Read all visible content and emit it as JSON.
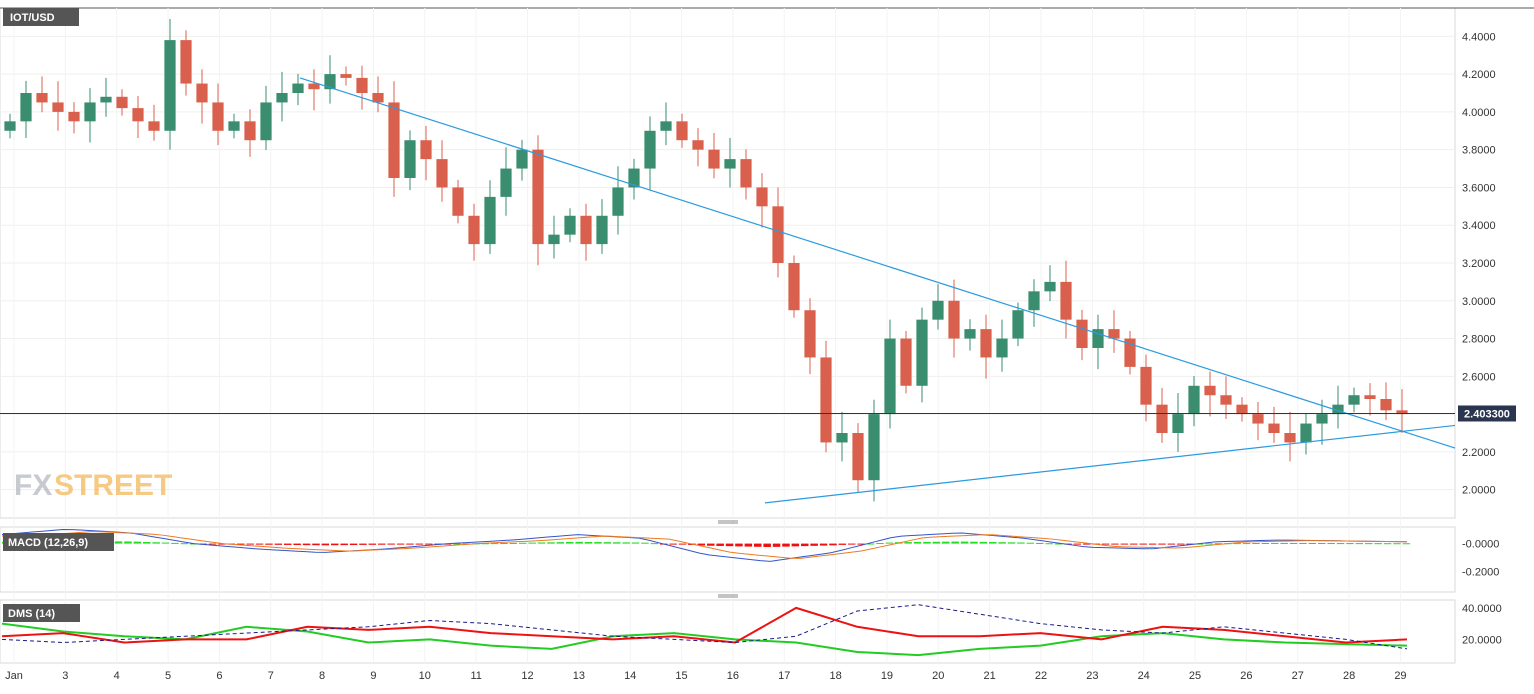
{
  "symbol": "IOT/USD",
  "watermark": {
    "fx": "FX",
    "street": "STREET"
  },
  "current_price_label": "2.403300",
  "macd_label": "MACD (12,26,9)",
  "dms_label": "DMS (14)",
  "x_tick_labels": [
    "Jan",
    "3",
    "4",
    "5",
    "6",
    "7",
    "8",
    "9",
    "10",
    "11",
    "12",
    "13",
    "14",
    "15",
    "16",
    "17",
    "18",
    "19",
    "20",
    "21",
    "22",
    "23",
    "24",
    "25",
    "26",
    "27",
    "28",
    "29"
  ],
  "colors": {
    "up": "#3a8d6f",
    "down": "#d9604c",
    "trend": "#2b9be0",
    "macd_up": "#22dd22",
    "macd_down": "#ee1111",
    "macd_line": "#3355cc",
    "signal_line": "#f07a20",
    "dms_plus": "#22cc22",
    "dms_minus": "#ee1111",
    "adx": "#1a1a8c"
  },
  "chart_data": [
    {
      "type": "candlestick",
      "title": "IOT/USD",
      "x_labels": [
        "Jan",
        "3",
        "4",
        "5",
        "6",
        "7",
        "8",
        "9",
        "10",
        "11",
        "12",
        "13",
        "14",
        "15",
        "16",
        "17",
        "18",
        "19",
        "20",
        "21",
        "22",
        "23",
        "24",
        "25",
        "26",
        "27",
        "28",
        "29"
      ],
      "ylim": [
        1.85,
        4.55
      ],
      "y_ticks": [
        "2.0000",
        "2.2000",
        "2.4000",
        "2.6000",
        "2.8000",
        "3.0000",
        "3.2000",
        "3.4000",
        "3.6000",
        "3.8000",
        "4.0000",
        "4.2000",
        "4.4000"
      ],
      "last_price": 2.4033,
      "closes": [
        3.95,
        4.1,
        4.05,
        4.0,
        3.95,
        4.05,
        4.08,
        4.02,
        3.95,
        3.9,
        4.38,
        4.15,
        4.05,
        3.9,
        3.95,
        3.85,
        4.05,
        4.1,
        4.15,
        4.12,
        4.2,
        4.18,
        4.1,
        4.05,
        3.65,
        3.85,
        3.75,
        3.6,
        3.45,
        3.3,
        3.55,
        3.7,
        3.8,
        3.3,
        3.35,
        3.45,
        3.3,
        3.45,
        3.6,
        3.7,
        3.9,
        3.95,
        3.85,
        3.8,
        3.7,
        3.75,
        3.6,
        3.5,
        3.2,
        2.95,
        2.7,
        2.25,
        2.3,
        2.05,
        2.4,
        2.8,
        2.55,
        2.9,
        3.0,
        2.8,
        2.85,
        2.7,
        2.8,
        2.95,
        3.05,
        3.1,
        2.9,
        2.75,
        2.85,
        2.8,
        2.65,
        2.45,
        2.3,
        2.4,
        2.55,
        2.5,
        2.45,
        2.4,
        2.35,
        2.3,
        2.25,
        2.35,
        2.4,
        2.45,
        2.5,
        2.48,
        2.42,
        2.4
      ],
      "annotations": [
        "descending trendline",
        "ascending trendline"
      ]
    },
    {
      "type": "bar",
      "title": "MACD (12,26,9)",
      "ylim": [
        -0.35,
        0.12
      ],
      "y_ticks": [
        "-0.0000",
        "-0.2000"
      ],
      "values_sample": [
        0.05,
        0.08,
        0.06,
        0.0,
        -0.03,
        -0.05,
        -0.03,
        0.0,
        0.02,
        0.05,
        0.03,
        -0.06,
        -0.1,
        -0.05,
        0.04,
        0.06,
        0.03,
        -0.02,
        -0.03,
        0.01,
        0.02,
        0.015,
        0.01
      ]
    },
    {
      "type": "line",
      "title": "DMS (14)",
      "ylim": [
        5,
        45
      ],
      "y_ticks": [
        "40.0000",
        "20.0000"
      ],
      "series": [
        {
          "name": "",
          "values": [
            30,
            25,
            22,
            20,
            28,
            25,
            18,
            20,
            16,
            14,
            22,
            24,
            20,
            18,
            12,
            10,
            14,
            16,
            22,
            24,
            20,
            18,
            17,
            16
          ]
        },
        {
          "name": "",
          "values": [
            22,
            24,
            18,
            20,
            20,
            28,
            26,
            28,
            24,
            22,
            20,
            22,
            18,
            40,
            28,
            22,
            22,
            24,
            20,
            28,
            26,
            22,
            18,
            20
          ]
        },
        {
          "name": "",
          "values": [
            20,
            18,
            20,
            22,
            24,
            26,
            28,
            32,
            30,
            26,
            22,
            20,
            18,
            22,
            38,
            42,
            36,
            30,
            26,
            24,
            28,
            24,
            20,
            14
          ]
        }
      ]
    }
  ]
}
